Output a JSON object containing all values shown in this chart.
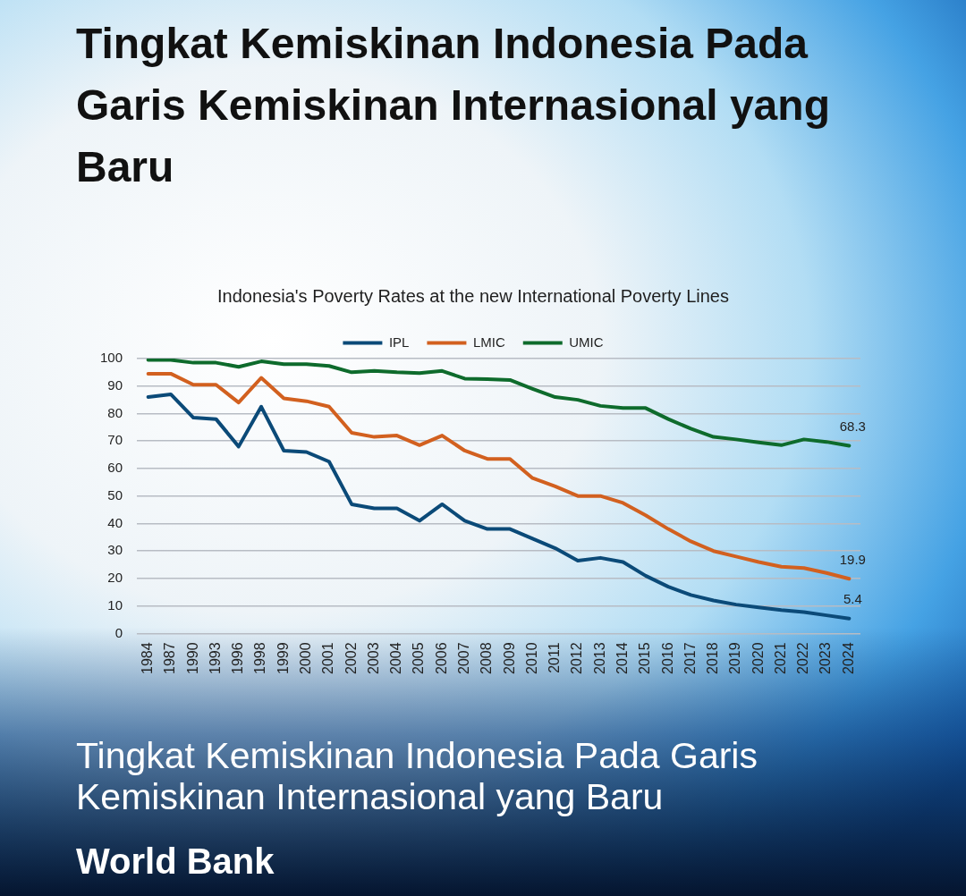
{
  "chart_data": {
    "type": "line",
    "title": "Tingkat Kemiskinan Indonesia Pada Garis Kemiskinan Internasional yang Baru",
    "subtitle": "Indonesia's Poverty Rates at the new International Poverty Lines",
    "categories": [
      "1984",
      "1987",
      "1990",
      "1993",
      "1996",
      "1998",
      "1999",
      "2000",
      "2001",
      "2002",
      "2003",
      "2004",
      "2005",
      "2006",
      "2007",
      "2008",
      "2009",
      "2010",
      "2011",
      "2012",
      "2013",
      "2014",
      "2015",
      "2016",
      "2017",
      "2018",
      "2019",
      "2020",
      "2021",
      "2022",
      "2023",
      "2024"
    ],
    "series": [
      {
        "name": "IPL",
        "color": "#0b4a78",
        "values": [
          86,
          87,
          78.5,
          78,
          68,
          82.5,
          66.5,
          66,
          62.5,
          47,
          45.5,
          45.5,
          41,
          47,
          41,
          38,
          38,
          34.5,
          31,
          26.5,
          27.5,
          26,
          21,
          17,
          14,
          12,
          10.5,
          9.5,
          8.5,
          7.8,
          6.6,
          5.4
        ],
        "value_labels": [
          null,
          null,
          null,
          null,
          null,
          null,
          null,
          null,
          null,
          null,
          null,
          null,
          null,
          null,
          null,
          null,
          null,
          null,
          null,
          null,
          null,
          null,
          null,
          null,
          null,
          null,
          null,
          null,
          null,
          null,
          null,
          "5.4"
        ]
      },
      {
        "name": "LMIC",
        "color": "#d2601f",
        "values": [
          94.5,
          94.5,
          90.5,
          90.5,
          84,
          93,
          85.5,
          84.5,
          82.5,
          73,
          71.5,
          72,
          68.5,
          72,
          66.5,
          63.5,
          63.5,
          56.5,
          53.5,
          50,
          50,
          47.5,
          43,
          38,
          33.5,
          30,
          28,
          26,
          24.3,
          23.8,
          22,
          19.9
        ],
        "value_labels": [
          null,
          null,
          null,
          null,
          null,
          null,
          null,
          null,
          null,
          null,
          null,
          null,
          null,
          null,
          null,
          null,
          null,
          null,
          null,
          null,
          null,
          null,
          null,
          null,
          null,
          null,
          null,
          null,
          null,
          null,
          null,
          "19.9"
        ]
      },
      {
        "name": "UMIC",
        "color": "#0e6b2c",
        "values": [
          99.5,
          99.5,
          98.5,
          98.5,
          97,
          99,
          98,
          98,
          97.3,
          95,
          95.5,
          95,
          94.7,
          95.5,
          92.7,
          92.5,
          92.2,
          89,
          86,
          85,
          82.8,
          82,
          82,
          78,
          74.5,
          71.5,
          70.6,
          69.5,
          68.5,
          70.6,
          69.7,
          68.3
        ],
        "value_labels": [
          null,
          null,
          null,
          null,
          null,
          null,
          null,
          null,
          null,
          null,
          null,
          null,
          null,
          null,
          null,
          null,
          null,
          null,
          null,
          null,
          null,
          null,
          null,
          null,
          null,
          null,
          null,
          null,
          null,
          null,
          null,
          "68.3"
        ]
      }
    ],
    "ylim": [
      0,
      100
    ],
    "yticks": [
      0,
      10,
      20,
      30,
      40,
      50,
      60,
      70,
      80,
      90,
      100
    ],
    "grid": "y",
    "legend": "top",
    "marker": "none",
    "line_style": "solid",
    "annotations": [
      "Tingkat Kemiskinan Indonesia Pada Garis Kemiskinan Internasional yang Baru",
      "World Bank"
    ]
  }
}
